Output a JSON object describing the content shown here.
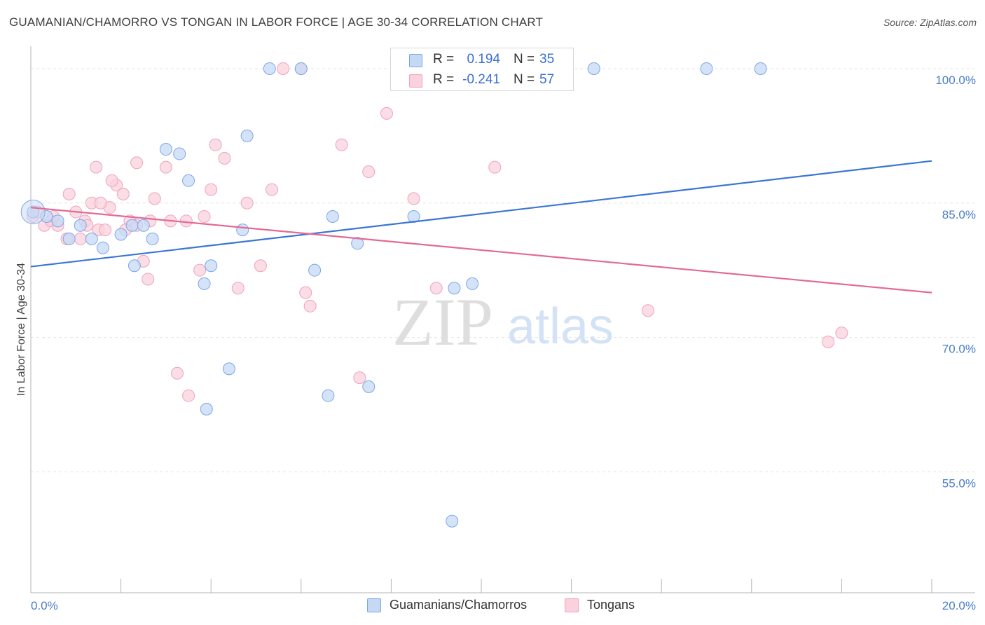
{
  "header": {
    "title": "GUAMANIAN/CHAMORRO VS TONGAN IN LABOR FORCE | AGE 30-34 CORRELATION CHART",
    "source": "Source: ZipAtlas.com"
  },
  "watermark": {
    "zip": "ZIP",
    "atlas": "atlas"
  },
  "stats_legend": {
    "rows": [
      {
        "r_label": "R =",
        "r_value": "0.194",
        "n_label": "N =",
        "n_value": "35"
      },
      {
        "r_label": "R =",
        "r_value": "-0.241",
        "n_label": "N =",
        "n_value": "57"
      }
    ]
  },
  "chart_data": {
    "type": "scatter",
    "title": "GUAMANIAN/CHAMORRO VS TONGAN IN LABOR FORCE | AGE 30-34 CORRELATION CHART",
    "xlabel": "",
    "ylabel": "In Labor Force | Age 30-34",
    "xlim": [
      0,
      20
    ],
    "ylim": [
      41.5,
      102.5
    ],
    "x_ticks": [
      0,
      2,
      4,
      6,
      8,
      10,
      12,
      14,
      16,
      18,
      20
    ],
    "x_tick_labels": {
      "0": "0.0%",
      "20": "20.0%"
    },
    "y_ticks": [
      55,
      70,
      85,
      100
    ],
    "y_tick_labels": [
      "55.0%",
      "70.0%",
      "85.0%",
      "100.0%"
    ],
    "grid": "horizontal dashed",
    "legend_position": "bottom-center",
    "series": [
      {
        "name": "Guamanians/Chamorros",
        "color": "#7aa7e8",
        "fill": "#c5d9f5",
        "line_color": "#3b76d4",
        "trend": {
          "x": [
            0,
            20
          ],
          "y": [
            77.9,
            89.7
          ]
        },
        "x": [
          0.05,
          0.35,
          0.6,
          0.85,
          1.1,
          1.35,
          1.6,
          2.0,
          2.25,
          2.3,
          2.5,
          2.7,
          3.0,
          3.3,
          3.5,
          3.85,
          4.0,
          4.4,
          4.7,
          4.8,
          5.3,
          6.0,
          6.3,
          6.6,
          6.7,
          7.25,
          7.5,
          8.5,
          9.4,
          9.35,
          9.8,
          12.5,
          15.0,
          16.2,
          3.9
        ],
        "y": [
          84.0,
          83.5,
          83.0,
          81.0,
          82.5,
          81.0,
          80.0,
          81.5,
          82.5,
          78.0,
          82.5,
          81.0,
          91.0,
          90.5,
          87.5,
          76.0,
          78.0,
          66.5,
          82.0,
          92.5,
          100.0,
          100.0,
          77.5,
          63.5,
          83.5,
          80.5,
          64.5,
          83.5,
          75.5,
          49.5,
          76.0,
          100.0,
          100.0,
          100.0,
          62.0
        ]
      },
      {
        "name": "Tongans",
        "color": "#f0a3ba",
        "fill": "#f9d2de",
        "line_color": "#e36a93",
        "trend": {
          "x": [
            0,
            20
          ],
          "y": [
            84.5,
            75.0
          ]
        },
        "x": [
          0.05,
          0.15,
          0.3,
          0.45,
          0.6,
          0.8,
          1.0,
          1.1,
          1.2,
          1.35,
          1.5,
          1.65,
          1.75,
          1.9,
          2.05,
          2.2,
          2.35,
          2.5,
          2.6,
          2.75,
          3.0,
          3.1,
          3.25,
          3.5,
          3.75,
          3.85,
          4.0,
          4.1,
          4.3,
          4.6,
          4.8,
          5.1,
          5.35,
          5.6,
          6.0,
          6.1,
          6.2,
          6.9,
          7.3,
          7.5,
          7.9,
          8.5,
          9.0,
          10.3,
          13.7,
          17.7,
          18.0,
          2.1,
          2.65,
          3.45,
          1.45,
          1.8,
          0.5,
          1.25,
          2.35,
          0.85,
          1.55
        ],
        "y": [
          83.5,
          84.0,
          82.5,
          83.0,
          82.5,
          81.0,
          84.0,
          81.0,
          83.0,
          85.0,
          82.0,
          82.0,
          84.5,
          87.0,
          86.0,
          83.0,
          82.5,
          78.5,
          76.5,
          85.5,
          89.0,
          83.0,
          66.0,
          63.5,
          77.5,
          83.5,
          86.5,
          91.5,
          90.0,
          75.5,
          85.0,
          78.0,
          86.5,
          100.0,
          100.0,
          75.0,
          73.5,
          91.5,
          65.5,
          88.5,
          95.0,
          85.5,
          75.5,
          89.0,
          73.0,
          69.5,
          70.5,
          82.0,
          83.0,
          83.0,
          89.0,
          87.5,
          83.5,
          82.5,
          89.5,
          86.0,
          85.0
        ]
      }
    ]
  },
  "bottom_legend": {
    "items": [
      {
        "label": "Guamanians/Chamorros"
      },
      {
        "label": "Tongans"
      }
    ]
  },
  "colors": {
    "blue_point_fill": "#c5d9f5",
    "blue_point_stroke": "#7aa7e8",
    "blue_line": "#3b76d4",
    "pink_point_fill": "#f9d2de",
    "pink_point_stroke": "#f0a3ba",
    "pink_line": "#e36a93",
    "tick_label": "#4a7cc9",
    "grid": "#e3e3e3"
  }
}
